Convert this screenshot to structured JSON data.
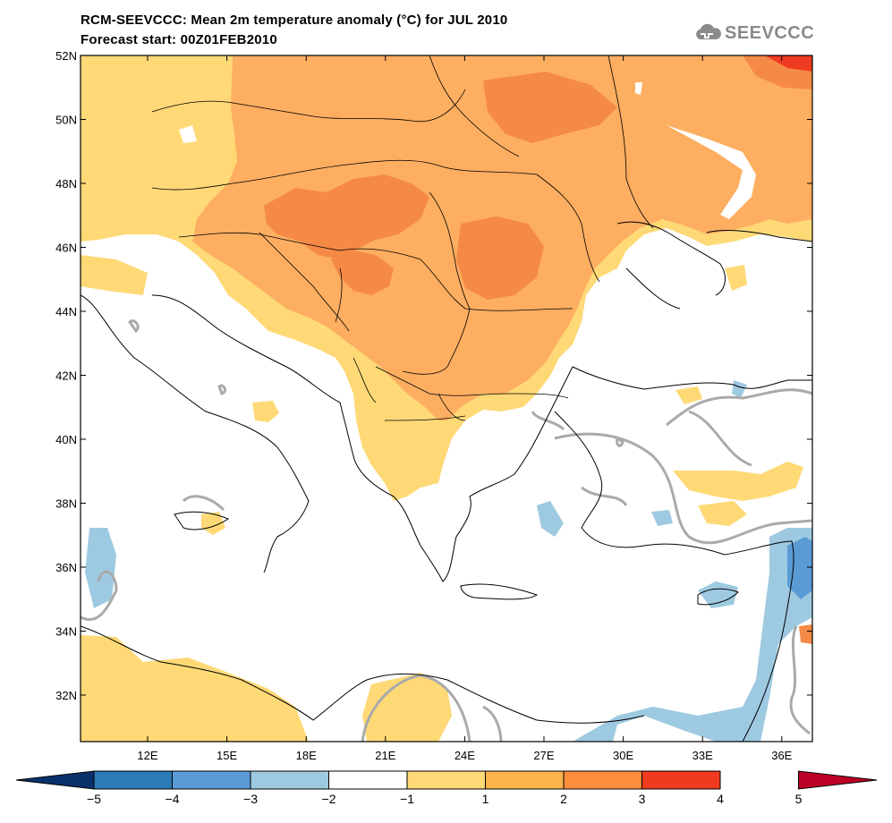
{
  "title_line1": "RCM-SEEVCCC: Mean 2m temperature anomaly (°C) for JUL 2010",
  "title_line2": "Forecast start: 00Z01FEB2010",
  "logo_text": "SEEVCCC",
  "y_ticks": [
    "52N",
    "50N",
    "48N",
    "46N",
    "44N",
    "42N",
    "40N",
    "38N",
    "36N",
    "34N",
    "32N"
  ],
  "x_ticks": [
    "12E",
    "15E",
    "18E",
    "21E",
    "24E",
    "27E",
    "30E",
    "33E",
    "36E"
  ],
  "colorbar": {
    "labels": [
      "−5",
      "−4",
      "−3",
      "−2",
      "−1",
      "1",
      "2",
      "3",
      "4",
      "5"
    ],
    "colors": [
      "#08306b",
      "#2c7bb6",
      "#5b9bd5",
      "#9ecae1",
      "#ffffff",
      "#fed976",
      "#feb24c",
      "#fd8d3c",
      "#f03b20",
      "#bd0026"
    ]
  },
  "map_colors": {
    "land_anom_1": "#fed976",
    "land_anom_2": "#fdae61",
    "land_anom_3": "#f58a46",
    "land_anom_4": "#f03b20",
    "cold_1": "#9ecae1",
    "cold_2": "#5b9bd5",
    "zero_contour": "#aaaaaa"
  }
}
